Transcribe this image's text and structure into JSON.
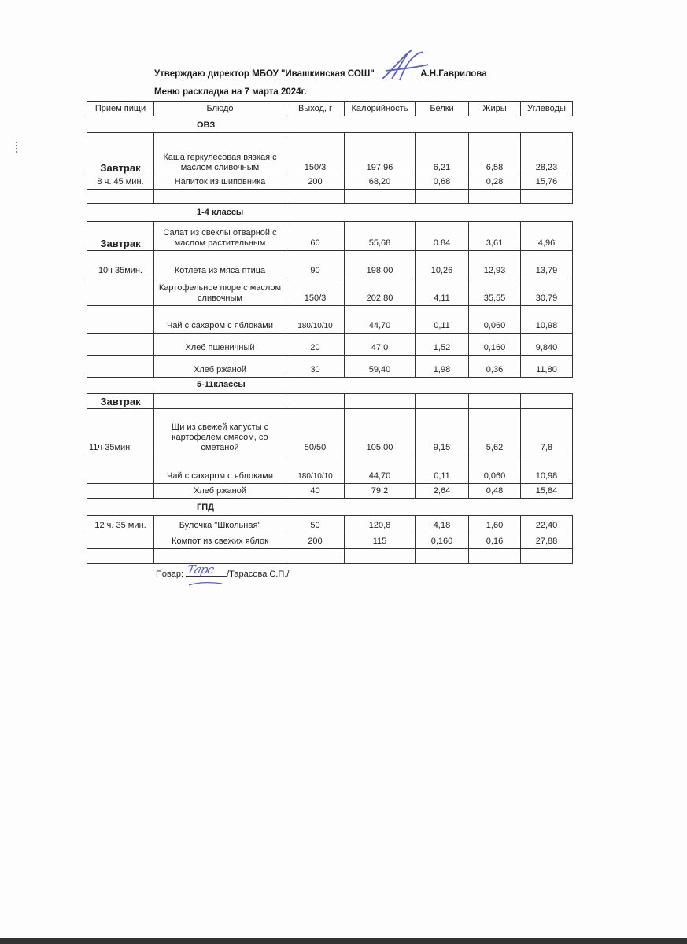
{
  "header": {
    "approval": "Утверждаю директор МБОУ \"Ивашкинская СОШ\"",
    "director": "А.Н.Гаврилова",
    "menu_title": "Меню раскладка на 7 марта   2024г."
  },
  "columns": [
    "Прием пищи",
    "Блюдо",
    "Выход, г",
    "Калорийность",
    "Белки",
    "Жиры",
    "Углеводы"
  ],
  "sections": [
    {
      "label": "ОВЗ",
      "rows": [
        [
          "Завтрак",
          "Каша геркулесовая вязкая с маслом сливочным",
          "150/3",
          "197,96",
          "6,21",
          "6,58",
          "28,23"
        ],
        [
          "8 ч. 45 мин.",
          "Напиток из шиповника",
          "200",
          "68,20",
          "0,68",
          "0,28",
          "15,76"
        ],
        [
          "",
          "",
          "",
          "",
          "",
          "",
          ""
        ]
      ]
    },
    {
      "label": "1-4 классы",
      "rows": [
        [
          "Завтрак",
          "Салат из свеклы отварной с маслом растительным",
          "60",
          "55,68",
          "0.84",
          "3,61",
          "4,96"
        ],
        [
          "10ч 35мин.",
          "Котлета из мяса птица",
          "90",
          "198,00",
          "10,26",
          "12,93",
          "13,79"
        ],
        [
          "",
          "Картофельное пюре с маслом сливочным",
          "150/3",
          "202,80",
          "4,11",
          "35,55",
          "30,79"
        ],
        [
          "",
          "Чай с сахаром с яблоками",
          "180/10/10",
          "44,70",
          "0,11",
          "0,060",
          "10,98"
        ],
        [
          "",
          "Хлеб пшеничный",
          "20",
          "47,0",
          "1,52",
          "0,160",
          "9,840"
        ],
        [
          "",
          "Хлеб ржаной",
          "30",
          "59,40",
          "1,98",
          "0,36",
          "11,80"
        ]
      ]
    },
    {
      "label": "5-11классы",
      "rows": [
        [
          "Завтрак",
          "",
          "",
          "",
          "",
          "",
          ""
        ],
        [
          "11ч 35мин",
          "Щи из свежей капусты  с картофелем смясом, со сметаной",
          "50/50",
          "105,00",
          "9,15",
          "5,62",
          "7,8"
        ],
        [
          "",
          "Чай с сахаром с яблоками",
          "180/10/10",
          "44,70",
          "0,11",
          "0,060",
          "10,98"
        ],
        [
          "",
          "Хлеб ржаной",
          "40",
          "79,2",
          "2,64",
          "0,48",
          "15,84"
        ]
      ]
    },
    {
      "label": "ГПД",
      "rows": [
        [
          "12 ч. 35 мин.",
          "Булочка \"Школьная\"",
          "50",
          "120,8",
          "4,18",
          "1,60",
          "22,40"
        ],
        [
          "",
          "Компот из свежих яблок",
          "200",
          "115",
          "0,160",
          "0,16",
          "27,88"
        ],
        [
          "",
          "",
          "",
          "",
          "",
          "",
          ""
        ]
      ]
    }
  ],
  "footer": {
    "cook_label": "Повар:",
    "cook_name": "/Тарасова С.П./",
    "cook_signature_text": "Тарс"
  },
  "colors": {
    "ink": "#222222",
    "signature": "#5a5fc8"
  }
}
